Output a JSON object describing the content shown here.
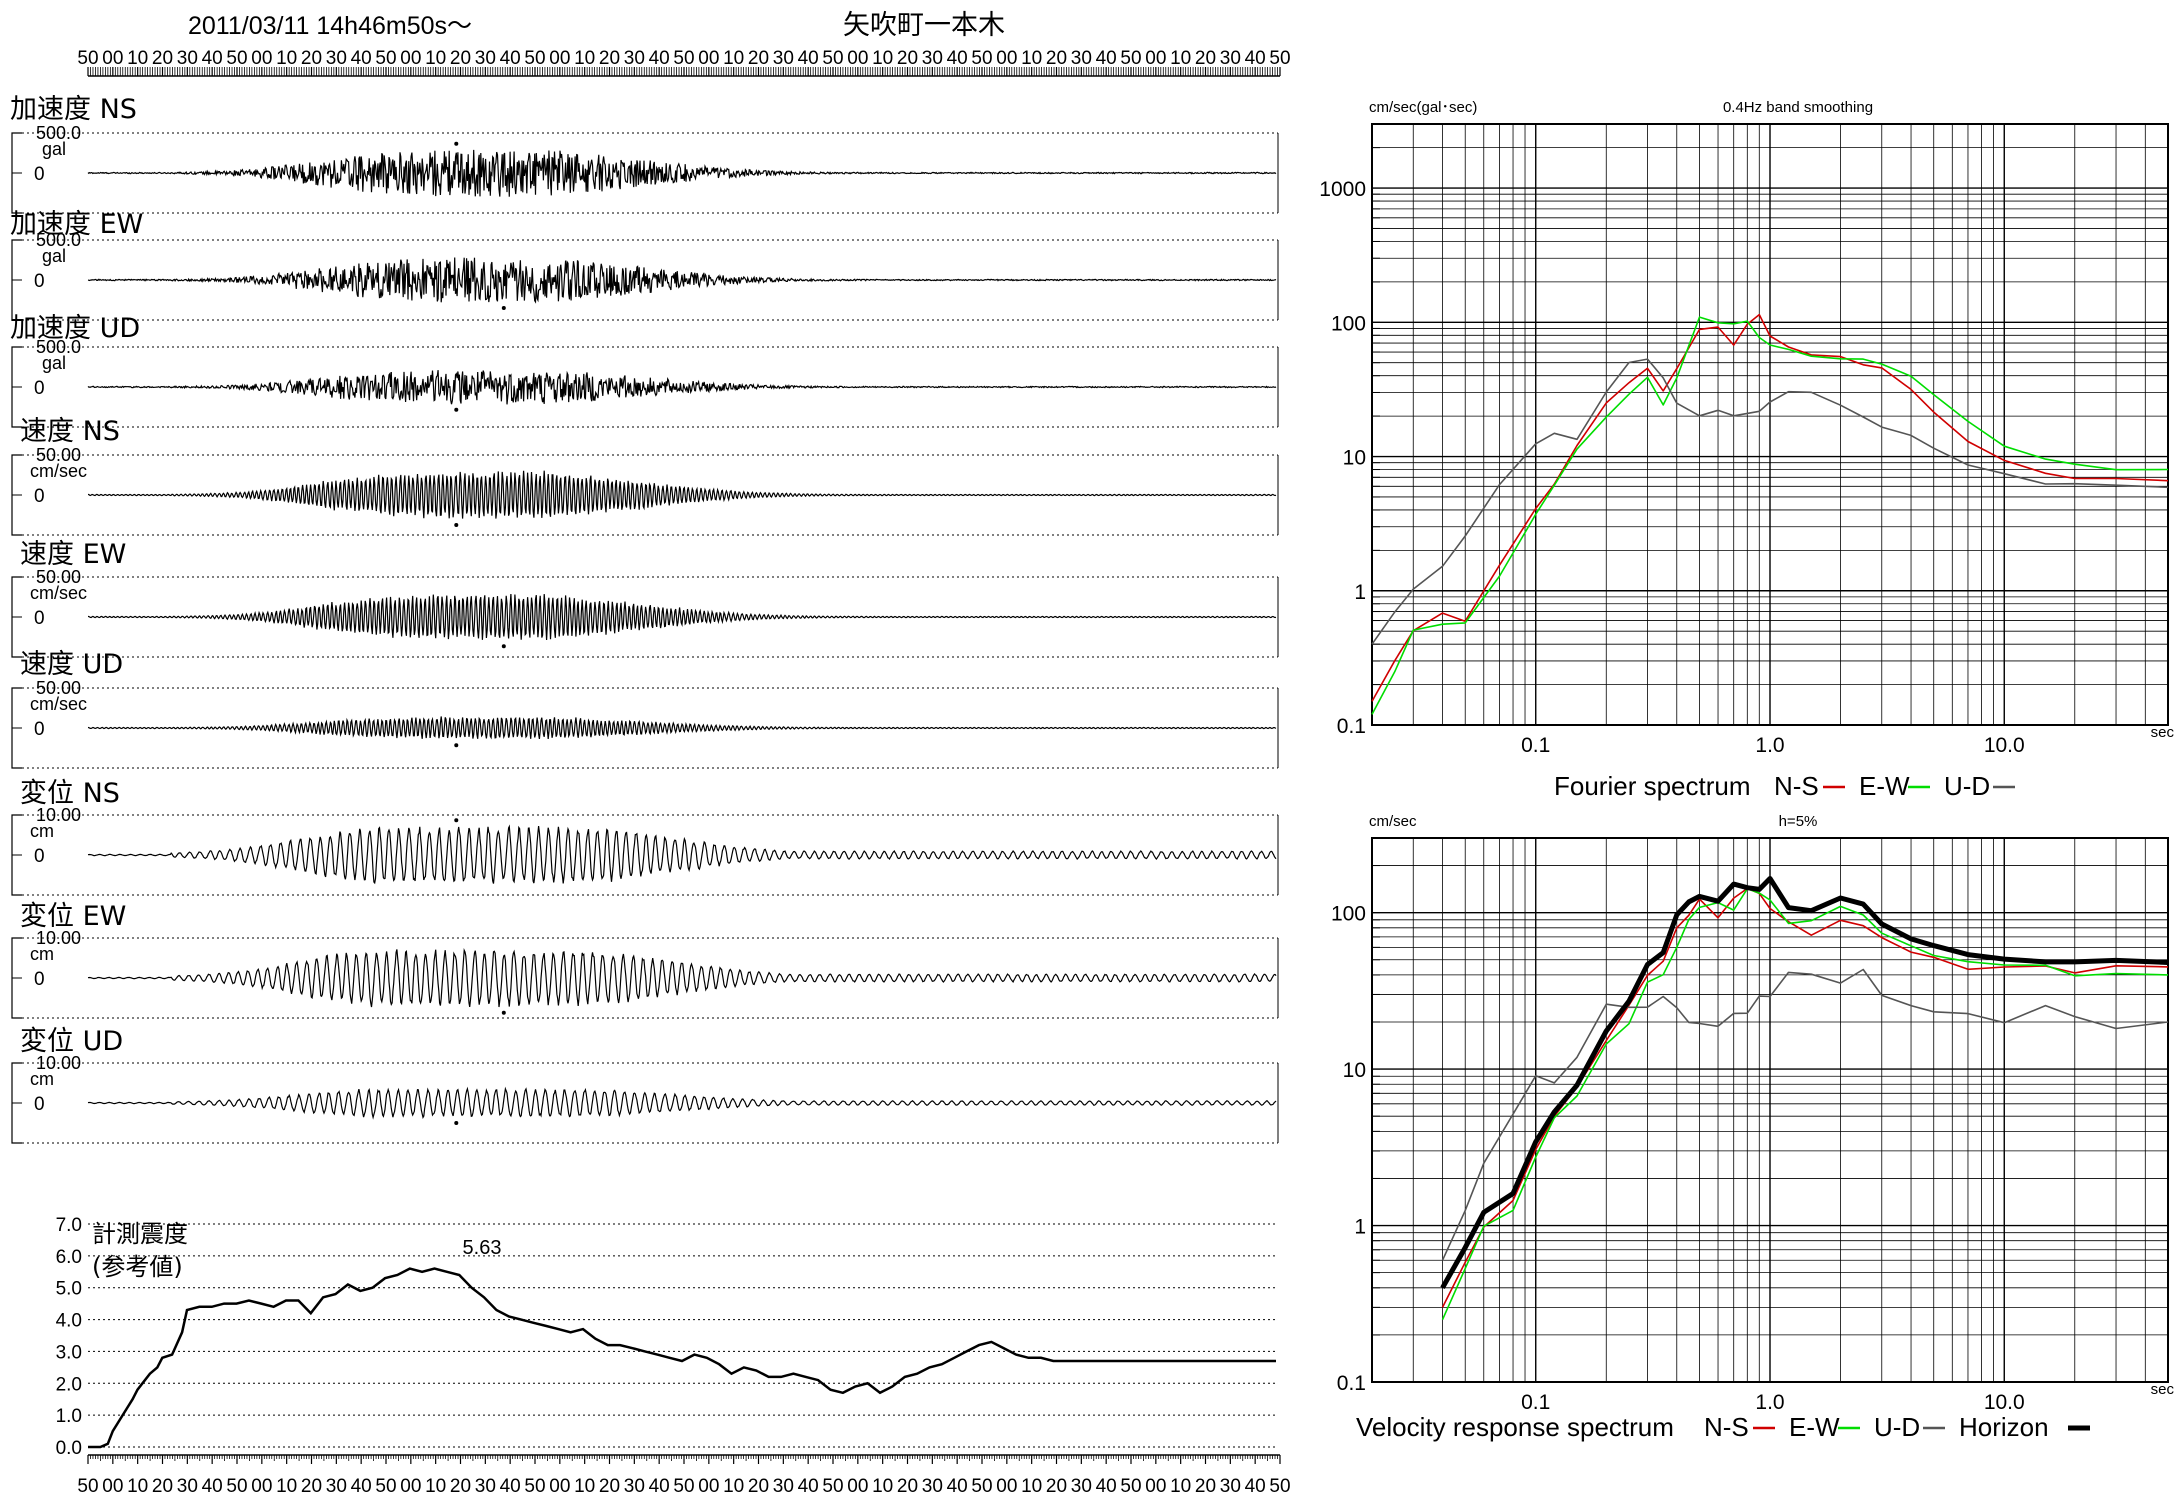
{
  "header": {
    "datetime": "2011/03/11  14h46m50s〜",
    "station": "矢吹町一本木"
  },
  "time_ticks": [
    "50",
    "00",
    "10",
    "20",
    "30",
    "40",
    "50",
    "00",
    "10",
    "20",
    "30",
    "40",
    "50",
    "00",
    "10",
    "20",
    "30",
    "40",
    "50",
    "00",
    "10",
    "20",
    "30",
    "40",
    "50",
    "00",
    "10",
    "20",
    "30",
    "40",
    "50",
    "00",
    "10",
    "20",
    "30",
    "40",
    "50",
    "00",
    "10",
    "20",
    "30",
    "40",
    "50",
    "00",
    "10",
    "20",
    "30",
    "40",
    "50"
  ],
  "waveforms": [
    {
      "label": "加速度 NS",
      "scale": "500.0",
      "unit": "gal",
      "zero": "0",
      "amp": 0.58,
      "kind": "acc",
      "peak_sign": 1
    },
    {
      "label": "加速度 EW",
      "scale": "500.0",
      "unit": "gal",
      "zero": "0",
      "amp": 0.55,
      "kind": "acc",
      "peak_sign": -1
    },
    {
      "label": "加速度 UD",
      "scale": "500.0",
      "unit": "gal",
      "zero": "0",
      "amp": 0.42,
      "kind": "acc",
      "peak_sign": -1
    },
    {
      "label": "速度 NS",
      "scale": "50.00",
      "unit": "cm/sec",
      "zero": "0",
      "amp": 0.6,
      "kind": "vel",
      "peak_sign": -1
    },
    {
      "label": "速度 EW",
      "scale": "50.00",
      "unit": "cm/sec",
      "zero": "0",
      "amp": 0.58,
      "kind": "vel",
      "peak_sign": -1
    },
    {
      "label": "速度 UD",
      "scale": "50.00",
      "unit": "cm/sec",
      "zero": "0",
      "amp": 0.28,
      "kind": "vel",
      "peak_sign": -1
    },
    {
      "label": "変位 NS",
      "scale": "10.00",
      "unit": "cm",
      "zero": "0",
      "amp": 0.72,
      "kind": "disp",
      "peak_sign": 1
    },
    {
      "label": "変位 EW",
      "scale": "10.00",
      "unit": "cm",
      "zero": "0",
      "amp": 0.72,
      "kind": "disp",
      "peak_sign": -1
    },
    {
      "label": "変位 UD",
      "scale": "10.00",
      "unit": "cm",
      "zero": "0",
      "amp": 0.35,
      "kind": "disp",
      "peak_sign": -1
    }
  ],
  "chart_data": [
    {
      "type": "line",
      "title": "計測震度 (参考値)",
      "title_lines": [
        "計測震度",
        "(参考値)"
      ],
      "peak_label": "5.63",
      "ylim": [
        0,
        7
      ],
      "yticks": [
        "0.0",
        "1.0",
        "2.0",
        "3.0",
        "4.0",
        "5.0",
        "6.0",
        "7.0"
      ],
      "x_sec": [
        0,
        5,
        8,
        10,
        14,
        18,
        20,
        25,
        28,
        30,
        34,
        38,
        40,
        45,
        50,
        55,
        60,
        65,
        70,
        75,
        80,
        85,
        90,
        95,
        100,
        105,
        110,
        115,
        120,
        125,
        130,
        135,
        140,
        145,
        150,
        155,
        160,
        165,
        170,
        175,
        180,
        185,
        190,
        195,
        200,
        205,
        210,
        215,
        220,
        225,
        230,
        235,
        240,
        245,
        250,
        255,
        260,
        265,
        270,
        275,
        280,
        285,
        290,
        295,
        300,
        305,
        310,
        315,
        320,
        325,
        330,
        335,
        340,
        345,
        350,
        355,
        360,
        365,
        370,
        375,
        380,
        385,
        390,
        395,
        400,
        405,
        410,
        415,
        420,
        425,
        430,
        435,
        440,
        445,
        450,
        455,
        460,
        465,
        470,
        475,
        480
      ],
      "values": [
        0.0,
        0.0,
        0.1,
        0.5,
        1.0,
        1.5,
        1.8,
        2.3,
        2.5,
        2.8,
        2.9,
        3.6,
        4.3,
        4.4,
        4.4,
        4.5,
        4.5,
        4.6,
        4.5,
        4.4,
        4.6,
        4.6,
        4.2,
        4.7,
        4.8,
        5.1,
        4.9,
        5.0,
        5.3,
        5.4,
        5.6,
        5.5,
        5.6,
        5.5,
        5.4,
        5.0,
        4.7,
        4.3,
        4.1,
        4.0,
        3.9,
        3.8,
        3.7,
        3.6,
        3.7,
        3.4,
        3.2,
        3.2,
        3.1,
        3.0,
        2.9,
        2.8,
        2.7,
        2.9,
        2.8,
        2.6,
        2.3,
        2.5,
        2.4,
        2.2,
        2.2,
        2.3,
        2.2,
        2.1,
        1.8,
        1.7,
        1.9,
        2.0,
        1.7,
        1.9,
        2.2,
        2.3,
        2.5,
        2.6,
        2.8,
        3.0,
        3.2,
        3.3,
        3.1,
        2.9,
        2.8,
        2.8,
        2.7,
        2.7,
        2.7,
        2.7,
        2.7,
        2.7,
        2.7,
        2.7,
        2.7,
        2.7,
        2.7,
        2.7,
        2.7,
        2.7,
        2.7,
        2.7,
        2.7,
        2.7,
        2.7
      ]
    },
    {
      "type": "line",
      "title": "Fourier spectrum",
      "ylabel": "cm/sec(gal･sec)",
      "subtitle": "0.4Hz band smoothing",
      "x_unit": "sec",
      "xlim": [
        0.02,
        50
      ],
      "ylim": [
        0.1,
        3000
      ],
      "log_x": true,
      "log_y": true,
      "xtick_labels": [
        {
          "v": 0.1,
          "t": "0.1"
        },
        {
          "v": 1,
          "t": "1.0"
        },
        {
          "v": 10,
          "t": "10.0"
        }
      ],
      "ytick_labels": [
        {
          "v": 0.1,
          "t": "0.1"
        },
        {
          "v": 1,
          "t": "1"
        },
        {
          "v": 10,
          "t": "10"
        },
        {
          "v": 100,
          "t": "100"
        },
        {
          "v": 1000,
          "t": "1000"
        }
      ],
      "legend": [
        {
          "name": "N-S",
          "color": "#d00000"
        },
        {
          "name": "E-W",
          "color": "#00dd00"
        },
        {
          "name": "U-D",
          "color": "#555555"
        }
      ],
      "series": [
        {
          "name": "N-S",
          "color": "#d00000",
          "x": [
            0.02,
            0.025,
            0.03,
            0.04,
            0.05,
            0.07,
            0.1,
            0.12,
            0.15,
            0.2,
            0.25,
            0.3,
            0.35,
            0.4,
            0.5,
            0.6,
            0.7,
            0.8,
            0.9,
            1.0,
            1.2,
            1.5,
            2,
            2.5,
            3,
            4,
            5,
            7,
            10,
            15,
            20,
            30,
            50
          ],
          "y": [
            0.15,
            0.3,
            0.5,
            0.7,
            0.6,
            1.5,
            4,
            6,
            12,
            25,
            35,
            45,
            30,
            45,
            90,
            95,
            70,
            100,
            110,
            80,
            65,
            55,
            55,
            50,
            45,
            32,
            22,
            13,
            9,
            7.5,
            7,
            6.8,
            6.6
          ]
        },
        {
          "name": "E-W",
          "color": "#00dd00",
          "x": [
            0.02,
            0.025,
            0.03,
            0.04,
            0.05,
            0.07,
            0.1,
            0.12,
            0.15,
            0.2,
            0.25,
            0.3,
            0.35,
            0.4,
            0.5,
            0.6,
            0.7,
            0.8,
            0.9,
            1.0,
            1.2,
            1.5,
            2,
            2.5,
            3,
            4,
            5,
            7,
            10,
            15,
            20,
            30,
            50
          ],
          "y": [
            0.12,
            0.25,
            0.5,
            0.55,
            0.6,
            1.3,
            3.8,
            6,
            11,
            20,
            30,
            40,
            25,
            40,
            110,
            100,
            95,
            105,
            80,
            70,
            65,
            55,
            52,
            52,
            50,
            40,
            30,
            18,
            12,
            9.5,
            8.5,
            8.2,
            8
          ]
        },
        {
          "name": "U-D",
          "color": "#555555",
          "x": [
            0.02,
            0.025,
            0.03,
            0.04,
            0.05,
            0.07,
            0.1,
            0.12,
            0.15,
            0.2,
            0.25,
            0.3,
            0.35,
            0.4,
            0.5,
            0.6,
            0.7,
            0.8,
            0.9,
            1.0,
            1.2,
            1.5,
            2,
            2.5,
            3,
            4,
            5,
            7,
            10,
            15,
            20,
            30,
            50
          ],
          "y": [
            0.4,
            0.7,
            1.0,
            1.5,
            2.5,
            6,
            12,
            15,
            13,
            30,
            50,
            55,
            40,
            25,
            20,
            22,
            20,
            21,
            22,
            25,
            30,
            30,
            25,
            20,
            17,
            14,
            12,
            9,
            7.5,
            6.5,
            6.2,
            6,
            5.9
          ]
        }
      ]
    },
    {
      "type": "line",
      "title": "Velocity response spectrum",
      "ylabel": "cm/sec",
      "subtitle": "h=5%",
      "x_unit": "sec",
      "xlim": [
        0.02,
        50
      ],
      "ylim": [
        0.1,
        300
      ],
      "log_x": true,
      "log_y": true,
      "xtick_labels": [
        {
          "v": 0.1,
          "t": "0.1"
        },
        {
          "v": 1,
          "t": "1.0"
        },
        {
          "v": 10,
          "t": "10.0"
        }
      ],
      "ytick_labels": [
        {
          "v": 0.1,
          "t": "0.1"
        },
        {
          "v": 1,
          "t": "1"
        },
        {
          "v": 10,
          "t": "10"
        },
        {
          "v": 100,
          "t": "100"
        }
      ],
      "legend": [
        {
          "name": "N-S",
          "color": "#d00000"
        },
        {
          "name": "E-W",
          "color": "#00dd00"
        },
        {
          "name": "U-D",
          "color": "#555555"
        },
        {
          "name": "Horizon",
          "color": "#000000"
        }
      ],
      "series": [
        {
          "name": "N-S",
          "color": "#d00000",
          "x": [
            0.04,
            0.05,
            0.06,
            0.08,
            0.1,
            0.12,
            0.15,
            0.2,
            0.25,
            0.3,
            0.35,
            0.4,
            0.45,
            0.5,
            0.6,
            0.7,
            0.8,
            0.9,
            1.0,
            1.2,
            1.5,
            2,
            2.5,
            3,
            4,
            5,
            7,
            10,
            15,
            20,
            30,
            50
          ],
          "y": [
            0.3,
            0.6,
            1.0,
            1.5,
            3,
            5,
            7.5,
            15,
            25,
            40,
            50,
            80,
            100,
            120,
            90,
            120,
            140,
            130,
            110,
            90,
            70,
            90,
            80,
            70,
            55,
            50,
            45,
            45,
            45,
            40,
            45,
            45
          ]
        },
        {
          "name": "E-W",
          "color": "#00dd00",
          "x": [
            0.04,
            0.05,
            0.06,
            0.08,
            0.1,
            0.12,
            0.15,
            0.2,
            0.25,
            0.3,
            0.35,
            0.4,
            0.45,
            0.5,
            0.6,
            0.7,
            0.8,
            0.9,
            1.0,
            1.2,
            1.5,
            2,
            2.5,
            3,
            4,
            5,
            7,
            10,
            15,
            20,
            30,
            50
          ],
          "y": [
            0.25,
            0.55,
            1.0,
            1.3,
            2.8,
            5,
            7,
            14,
            20,
            35,
            40,
            60,
            90,
            110,
            120,
            100,
            140,
            130,
            120,
            85,
            90,
            110,
            100,
            75,
            60,
            55,
            50,
            45,
            45,
            40,
            40,
            40
          ]
        },
        {
          "name": "U-D",
          "color": "#555555",
          "x": [
            0.04,
            0.05,
            0.06,
            0.08,
            0.1,
            0.12,
            0.15,
            0.2,
            0.25,
            0.3,
            0.35,
            0.4,
            0.45,
            0.5,
            0.6,
            0.7,
            0.8,
            0.9,
            1.0,
            1.2,
            1.5,
            2,
            2.5,
            3,
            4,
            5,
            7,
            10,
            15,
            20,
            30,
            50
          ],
          "y": [
            0.6,
            1.2,
            2.5,
            5,
            9,
            8,
            12,
            25,
            25,
            25,
            30,
            25,
            20,
            20,
            19,
            22,
            22,
            30,
            30,
            40,
            40,
            35,
            45,
            30,
            25,
            23,
            22,
            20,
            25,
            22,
            18,
            20
          ]
        },
        {
          "name": "Horizon",
          "color": "#000000",
          "x": [
            0.04,
            0.05,
            0.06,
            0.08,
            0.1,
            0.12,
            0.15,
            0.2,
            0.25,
            0.3,
            0.35,
            0.4,
            0.45,
            0.5,
            0.6,
            0.7,
            0.8,
            0.9,
            1.0,
            1.2,
            1.5,
            2,
            2.5,
            3,
            4,
            5,
            7,
            10,
            15,
            20,
            30,
            50
          ],
          "y": [
            0.4,
            0.7,
            1.2,
            1.6,
            3.5,
            5.5,
            8,
            18,
            28,
            45,
            55,
            95,
            120,
            130,
            120,
            150,
            150,
            140,
            160,
            110,
            100,
            120,
            110,
            85,
            70,
            60,
            55,
            52,
            50,
            48,
            48,
            48
          ]
        }
      ]
    }
  ]
}
